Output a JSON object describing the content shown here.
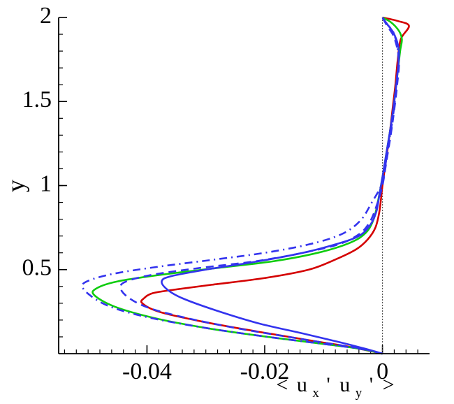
{
  "chart_data": {
    "type": "line",
    "title": "",
    "xlabel": {
      "prefix": "<",
      "term1_base": "u",
      "term1_sub": "x",
      "term2_base": "u",
      "term2_sub": "y",
      "sep": "'",
      "suffix": ">"
    },
    "ylabel": "y",
    "xlim": [
      -0.055,
      0.008
    ],
    "ylim": [
      0,
      2
    ],
    "x_ticks": [
      {
        "value": -0.04,
        "label": "-0.04"
      },
      {
        "value": -0.02,
        "label": "-0.02"
      },
      {
        "value": 0,
        "label": "0"
      }
    ],
    "y_ticks": [
      {
        "value": 0.5,
        "label": "0.5"
      },
      {
        "value": 1,
        "label": "1"
      },
      {
        "value": 1.5,
        "label": "1.5"
      },
      {
        "value": 2,
        "label": "2"
      }
    ],
    "x_minor_step": 0.002,
    "y_minor_step": 0.1,
    "grid": false,
    "legend": "none",
    "reference_line": {
      "x": 0,
      "style": "dotted",
      "color": "#555555"
    },
    "series": [
      {
        "color": "#d40000",
        "dash": "solid",
        "x": [
          0.0,
          -0.0055,
          -0.0125,
          -0.021,
          -0.0305,
          -0.038,
          -0.0408,
          -0.0405,
          -0.039,
          -0.0355,
          -0.029,
          -0.02,
          -0.0125,
          -0.008,
          -0.0045,
          -0.0025,
          -0.0012,
          -0.0005,
          0.0,
          0.0006,
          0.0012,
          0.0017,
          0.0022,
          0.0026,
          0.0031,
          0.0045,
          0.0025,
          0.0
        ],
        "y": [
          0.0,
          0.04,
          0.08,
          0.13,
          0.19,
          0.25,
          0.3,
          0.33,
          0.36,
          0.38,
          0.41,
          0.45,
          0.5,
          0.56,
          0.62,
          0.68,
          0.75,
          0.85,
          1.0,
          1.15,
          1.3,
          1.45,
          1.6,
          1.75,
          1.87,
          1.95,
          1.98,
          2.0
        ]
      },
      {
        "color": "#0fcc0f",
        "dash": "solid",
        "x": [
          0.0,
          -0.004,
          -0.0105,
          -0.0195,
          -0.0295,
          -0.0385,
          -0.0455,
          -0.049,
          -0.0485,
          -0.045,
          -0.0375,
          -0.028,
          -0.0185,
          -0.011,
          -0.0055,
          -0.0028,
          -0.0015,
          -0.0008,
          0.0,
          0.0007,
          0.0014,
          0.002,
          0.0025,
          0.003,
          0.0033,
          0.0028,
          0.0015,
          0.0
        ],
        "y": [
          0.0,
          0.03,
          0.06,
          0.1,
          0.15,
          0.21,
          0.28,
          0.35,
          0.39,
          0.43,
          0.47,
          0.51,
          0.55,
          0.6,
          0.66,
          0.72,
          0.8,
          0.9,
          1.05,
          1.2,
          1.35,
          1.5,
          1.65,
          1.8,
          1.87,
          1.92,
          1.97,
          2.0
        ]
      },
      {
        "color": "#3333ee",
        "dash": "solid",
        "x": [
          0.0,
          -0.003,
          -0.0075,
          -0.0135,
          -0.021,
          -0.0285,
          -0.034,
          -0.0365,
          -0.0375,
          -0.036,
          -0.03,
          -0.021,
          -0.0135,
          -0.008,
          -0.004,
          -0.002,
          -0.001,
          -0.0005,
          0.0,
          0.0007,
          0.0014,
          0.002,
          0.0025,
          0.0028,
          0.002,
          0.0008,
          0.0
        ],
        "y": [
          0.0,
          0.03,
          0.07,
          0.12,
          0.18,
          0.26,
          0.33,
          0.38,
          0.43,
          0.46,
          0.5,
          0.55,
          0.6,
          0.65,
          0.7,
          0.77,
          0.85,
          0.95,
          1.05,
          1.2,
          1.35,
          1.5,
          1.65,
          1.8,
          1.9,
          1.96,
          2.0
        ]
      },
      {
        "color": "#3333ee",
        "dash": "dashed",
        "x": [
          0.0,
          -0.0035,
          -0.009,
          -0.016,
          -0.0245,
          -0.033,
          -0.0395,
          -0.043,
          -0.0445,
          -0.0435,
          -0.039,
          -0.031,
          -0.0215,
          -0.0135,
          -0.0075,
          -0.004,
          -0.0022,
          -0.001,
          0.0,
          0.0007,
          0.0014,
          0.002,
          0.0025,
          0.0028,
          0.002,
          0.0008,
          0.0
        ],
        "y": [
          0.0,
          0.03,
          0.06,
          0.1,
          0.15,
          0.21,
          0.27,
          0.33,
          0.39,
          0.43,
          0.47,
          0.51,
          0.55,
          0.6,
          0.65,
          0.71,
          0.78,
          0.88,
          1.0,
          1.15,
          1.3,
          1.45,
          1.6,
          1.75,
          1.88,
          1.95,
          2.0
        ]
      },
      {
        "color": "#3333ee",
        "dash": "dashdot",
        "x": [
          0.0,
          -0.004,
          -0.0105,
          -0.0195,
          -0.0295,
          -0.039,
          -0.0455,
          -0.049,
          -0.051,
          -0.0495,
          -0.045,
          -0.0375,
          -0.0285,
          -0.02,
          -0.0125,
          -0.007,
          -0.0038,
          -0.0018,
          0.0,
          0.0007,
          0.0014,
          0.002,
          0.0024,
          0.0027,
          0.002,
          0.0008,
          0.0
        ],
        "y": [
          0.0,
          0.03,
          0.06,
          0.1,
          0.15,
          0.21,
          0.27,
          0.33,
          0.4,
          0.44,
          0.48,
          0.52,
          0.56,
          0.6,
          0.65,
          0.71,
          0.79,
          0.9,
          1.02,
          1.17,
          1.32,
          1.47,
          1.62,
          1.77,
          1.9,
          1.96,
          2.0
        ]
      }
    ]
  }
}
